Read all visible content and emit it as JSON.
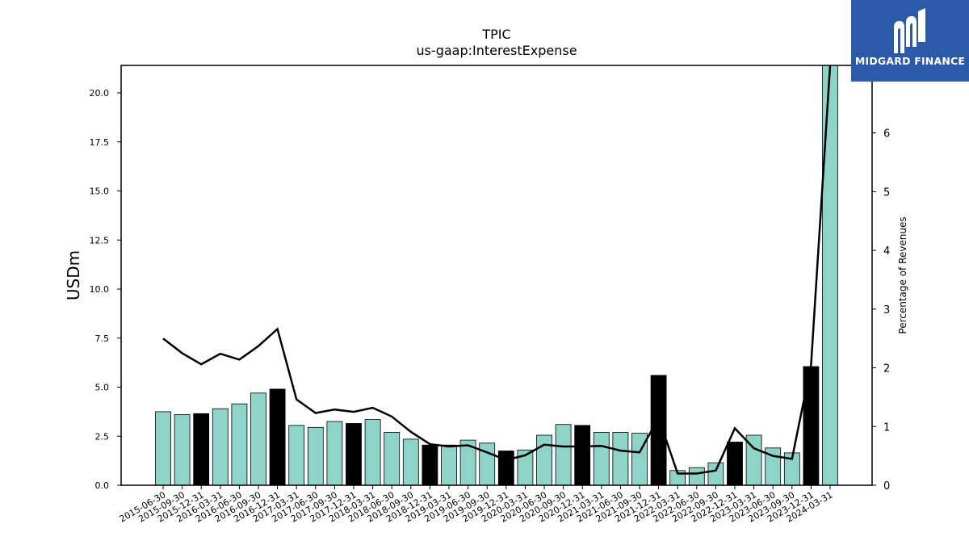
{
  "chart_data": {
    "type": "bar",
    "title": "TPIC",
    "subtitle": "us-gaap:InterestExpense",
    "ylabel": "USDm",
    "y2label": "Percentage of Revenues",
    "ylim": [
      0,
      21.4
    ],
    "y2lim": [
      0,
      7.15
    ],
    "yticks": [
      "0.0",
      "2.5",
      "5.0",
      "7.5",
      "10.0",
      "12.5",
      "15.0",
      "17.5",
      "20.0"
    ],
    "y2ticks": [
      "0",
      "1",
      "2",
      "3",
      "4",
      "5",
      "6"
    ],
    "categories": [
      "2015-06-30",
      "2015-09-30",
      "2015-12-31",
      "2016-03-31",
      "2016-06-30",
      "2016-09-30",
      "2016-12-31",
      "2017-03-31",
      "2017-06-30",
      "2017-09-30",
      "2017-12-31",
      "2018-03-31",
      "2018-06-30",
      "2018-09-30",
      "2018-12-31",
      "2019-03-31",
      "2019-06-30",
      "2019-09-30",
      "2019-12-31",
      "2020-03-31",
      "2020-06-30",
      "2020-09-30",
      "2020-12-31",
      "2021-03-31",
      "2021-06-30",
      "2021-09-30",
      "2021-12-31",
      "2022-03-31",
      "2022-06-30",
      "2022-09-30",
      "2022-12-31",
      "2023-03-31",
      "2023-06-30",
      "2023-09-30",
      "2023-12-31",
      "2024-03-31"
    ],
    "series": [
      {
        "kind": "bar",
        "values": [
          3.75,
          3.6,
          3.65,
          3.9,
          4.15,
          4.7,
          4.9,
          3.05,
          2.95,
          3.25,
          3.15,
          3.35,
          2.7,
          2.35,
          2.05,
          2.05,
          2.3,
          2.15,
          1.75,
          1.8,
          2.55,
          3.1,
          3.05,
          2.7,
          2.7,
          2.65,
          5.6,
          0.75,
          0.9,
          1.15,
          2.2,
          2.55,
          1.9,
          1.65,
          6.05,
          21.4
        ],
        "highlight": [
          false,
          false,
          true,
          false,
          false,
          false,
          true,
          false,
          false,
          false,
          true,
          false,
          false,
          false,
          true,
          false,
          false,
          false,
          true,
          false,
          false,
          false,
          true,
          false,
          false,
          false,
          true,
          false,
          false,
          false,
          true,
          false,
          false,
          false,
          true,
          false
        ]
      },
      {
        "kind": "line",
        "axis": "right",
        "values": [
          2.5,
          2.25,
          2.06,
          2.24,
          2.14,
          2.37,
          2.66,
          1.46,
          1.23,
          1.29,
          1.25,
          1.32,
          1.17,
          0.91,
          0.7,
          0.66,
          0.68,
          0.56,
          0.43,
          0.51,
          0.69,
          0.66,
          0.66,
          0.67,
          0.59,
          0.56,
          1.15,
          0.2,
          0.2,
          0.25,
          0.97,
          0.63,
          0.5,
          0.45,
          2.05,
          7.15
        ]
      }
    ],
    "colors": {
      "bar": "#8dd3c7",
      "highlight": "#000000",
      "line": "#000000"
    },
    "grid": false
  },
  "logo": {
    "text": "MIDGARD FINANCE",
    "background": "#2b5aa8"
  }
}
